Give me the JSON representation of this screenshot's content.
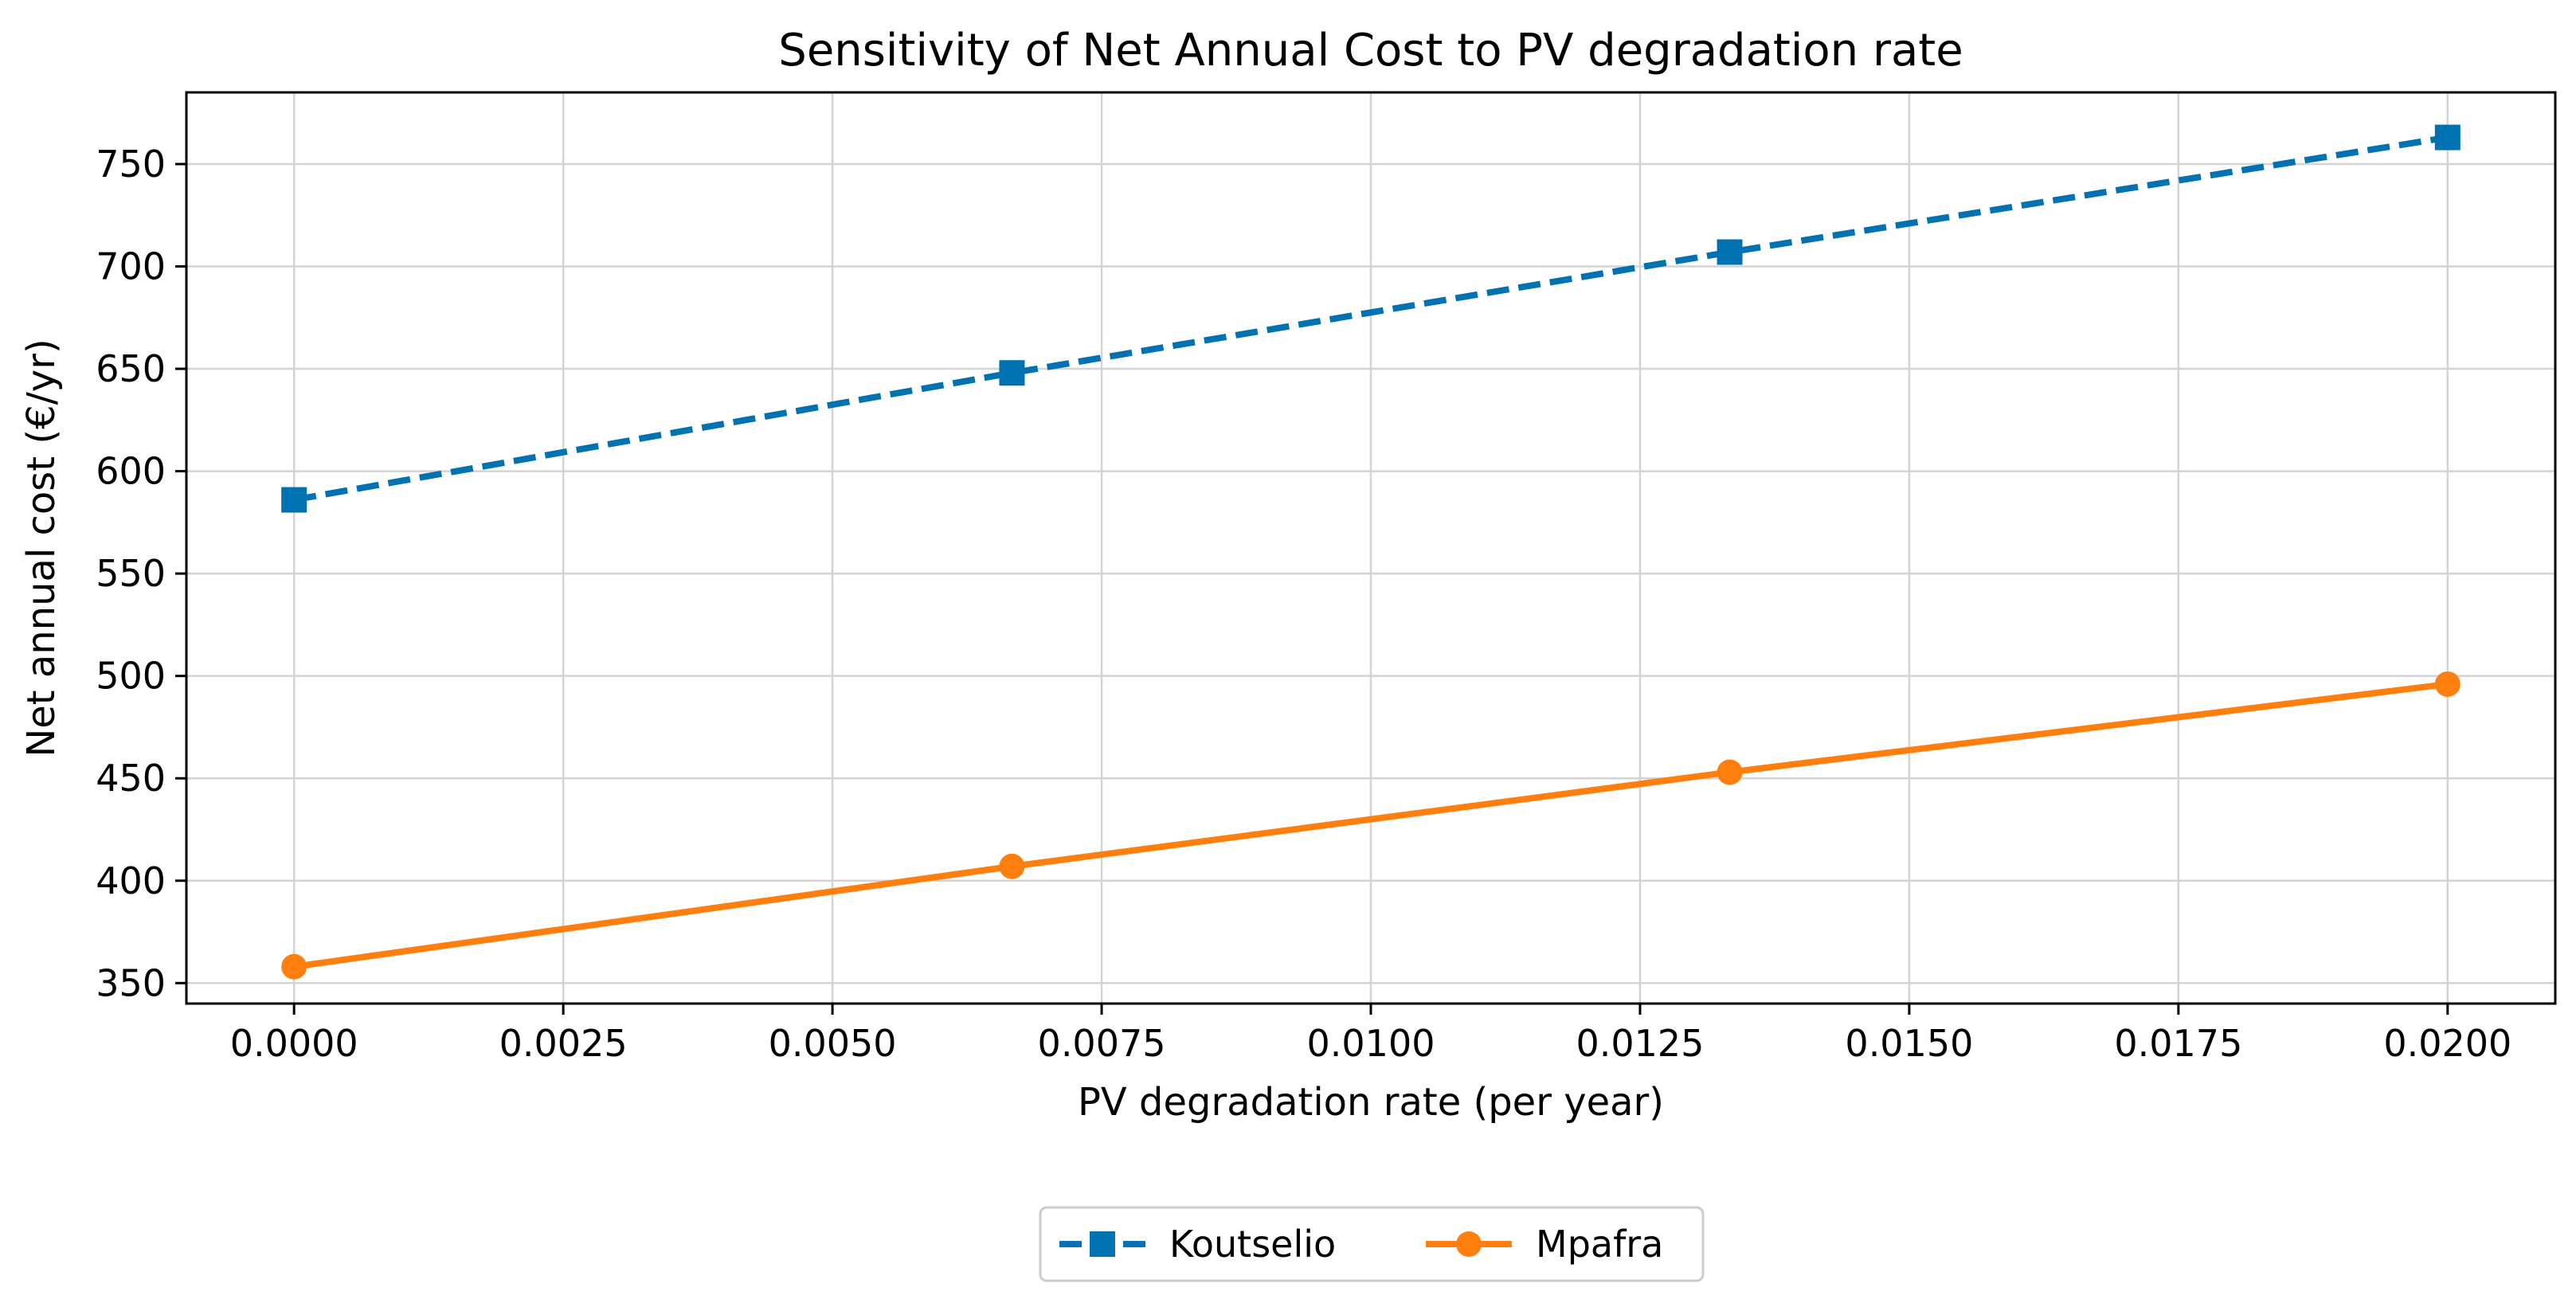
{
  "chart_data": {
    "type": "line",
    "title": "Sensitivity of Net Annual Cost to PV degradation rate",
    "xlabel": "PV degradation rate (per year)",
    "ylabel": "Net annual cost (€/yr)",
    "xlim": [
      -0.001,
      0.021
    ],
    "ylim": [
      340,
      785
    ],
    "xticks": [
      0.0,
      0.0025,
      0.005,
      0.0075,
      0.01,
      0.0125,
      0.015,
      0.0175,
      0.02
    ],
    "xtick_labels": [
      "0.0000",
      "0.0025",
      "0.0050",
      "0.0075",
      "0.0100",
      "0.0125",
      "0.0150",
      "0.0175",
      "0.0200"
    ],
    "yticks": [
      350,
      400,
      450,
      500,
      550,
      600,
      650,
      700,
      750
    ],
    "ytick_labels": [
      "350",
      "400",
      "450",
      "500",
      "550",
      "600",
      "650",
      "700",
      "750"
    ],
    "grid": true,
    "legend_position": "bottom-center",
    "x": [
      0.0,
      0.006667,
      0.013333,
      0.02
    ],
    "series": [
      {
        "name": "Koutselio",
        "values": [
          586,
          648,
          707,
          763
        ],
        "color": "#0072b2",
        "line_style": "dashed",
        "marker": "square"
      },
      {
        "name": "Mpafra",
        "values": [
          358,
          407,
          453,
          496
        ],
        "color": "#ff7f0e",
        "line_style": "solid",
        "marker": "circle"
      }
    ]
  }
}
